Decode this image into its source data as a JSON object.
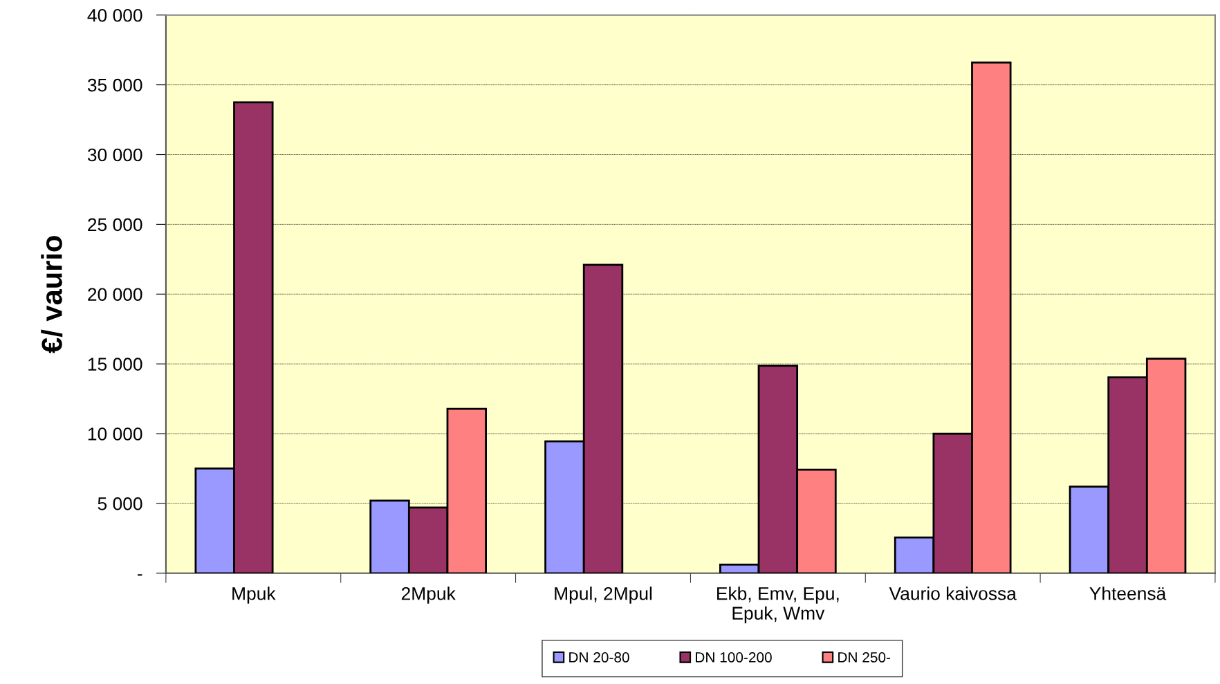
{
  "chart_data": {
    "type": "bar",
    "ylabel": "€/ vaurio",
    "categories": [
      "Mpuk",
      "2Mpuk",
      "Mpul, 2Mpul",
      "Ekb, Emv, Epu,\nEpuk, Wmv",
      "Vaurio kaivossa",
      "Yhteensä"
    ],
    "series": [
      {
        "name": "DN 20-80",
        "color": "#9999ff",
        "values": [
          7500,
          5200,
          9450,
          620,
          2560,
          6200
        ]
      },
      {
        "name": "DN 100-200",
        "color": "#993366",
        "values": [
          33750,
          4700,
          22100,
          14870,
          10000,
          14030
        ]
      },
      {
        "name": "DN 250-",
        "color": "#ff8080",
        "values": [
          null,
          11780,
          null,
          7420,
          36600,
          15370
        ]
      }
    ],
    "ylim": [
      0,
      40000
    ],
    "yticks": [
      {
        "value": 0,
        "label": "-"
      },
      {
        "value": 5000,
        "label": "5 000"
      },
      {
        "value": 10000,
        "label": "10 000"
      },
      {
        "value": 15000,
        "label": "15 000"
      },
      {
        "value": 20000,
        "label": "20 000"
      },
      {
        "value": 25000,
        "label": "25 000"
      },
      {
        "value": 30000,
        "label": "30 000"
      },
      {
        "value": 35000,
        "label": "35 000"
      },
      {
        "value": 40000,
        "label": "40 000"
      }
    ],
    "grid": "y",
    "legend": "bottom"
  }
}
